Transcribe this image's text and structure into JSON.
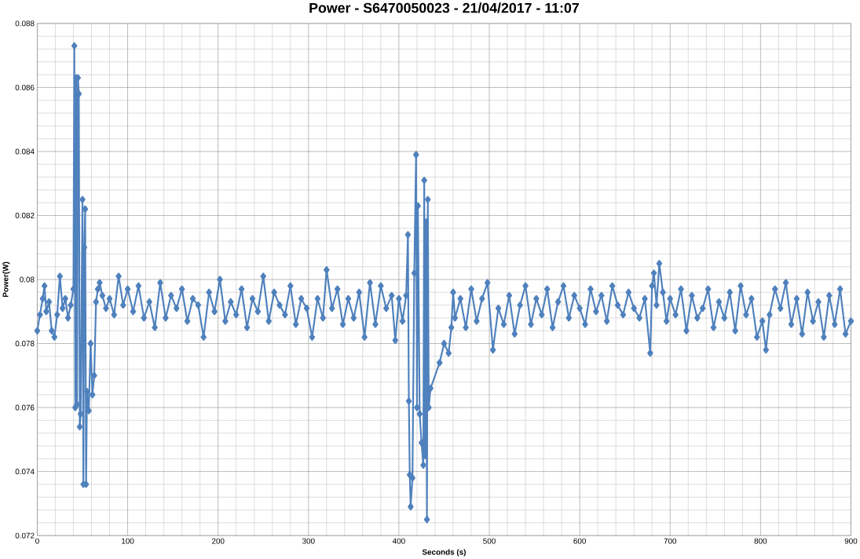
{
  "chart_data": {
    "type": "line",
    "title": "Power - S6470050023 - 21/04/2017 - 11:07",
    "xlabel": "Seconds (s)",
    "ylabel": "Power(W)",
    "xlim": [
      0,
      900
    ],
    "ylim": [
      0.072,
      0.088
    ],
    "xticks": [
      0,
      100,
      200,
      300,
      400,
      500,
      600,
      700,
      800,
      900
    ],
    "yticks": [
      0.072,
      0.074,
      0.076,
      0.078,
      0.08,
      0.082,
      0.084,
      0.086,
      0.088
    ],
    "grid": true,
    "marker": "diamond",
    "line_style": "solid",
    "series": [
      {
        "color": "#4f81bd",
        "x": [
          0,
          3,
          6,
          8,
          10,
          13,
          16,
          19,
          22,
          25,
          28,
          31,
          34,
          37,
          40,
          41,
          42,
          43,
          44,
          45,
          46,
          47,
          48,
          50,
          51,
          52,
          53,
          54,
          55,
          57,
          59,
          61,
          63,
          65,
          67,
          69,
          72,
          76,
          80,
          85,
          90,
          95,
          100,
          106,
          112,
          118,
          124,
          130,
          136,
          142,
          148,
          154,
          160,
          166,
          172,
          178,
          184,
          190,
          196,
          202,
          208,
          214,
          220,
          226,
          232,
          238,
          244,
          250,
          256,
          262,
          268,
          274,
          280,
          286,
          292,
          298,
          304,
          310,
          316,
          320,
          326,
          332,
          338,
          344,
          350,
          356,
          362,
          368,
          374,
          380,
          386,
          392,
          396,
          400,
          404,
          408,
          410,
          411,
          412,
          413,
          415,
          417,
          419,
          420,
          421,
          423,
          425,
          427,
          428,
          429,
          430,
          431,
          432,
          433,
          435,
          445,
          450,
          455,
          458,
          460,
          462,
          468,
          474,
          480,
          486,
          492,
          498,
          504,
          510,
          516,
          522,
          528,
          534,
          540,
          546,
          552,
          558,
          564,
          570,
          576,
          582,
          588,
          594,
          600,
          606,
          612,
          618,
          624,
          630,
          636,
          642,
          648,
          654,
          660,
          666,
          672,
          678,
          680,
          682,
          685,
          688,
          692,
          696,
          700,
          706,
          712,
          718,
          724,
          730,
          736,
          742,
          748,
          754,
          760,
          766,
          772,
          778,
          784,
          790,
          796,
          802,
          806,
          810,
          816,
          822,
          828,
          834,
          840,
          846,
          852,
          858,
          864,
          870,
          876,
          882,
          888,
          894,
          900
        ],
        "values": [
          0.0784,
          0.0789,
          0.0794,
          0.0798,
          0.079,
          0.0793,
          0.0784,
          0.0782,
          0.0789,
          0.0801,
          0.0791,
          0.0794,
          0.0788,
          0.0792,
          0.0797,
          0.0873,
          0.076,
          0.0863,
          0.0761,
          0.0863,
          0.0858,
          0.0754,
          0.0758,
          0.0825,
          0.0736,
          0.081,
          0.0822,
          0.0736,
          0.0765,
          0.0759,
          0.078,
          0.0764,
          0.077,
          0.0793,
          0.0797,
          0.0799,
          0.0795,
          0.0791,
          0.0794,
          0.0789,
          0.0801,
          0.0792,
          0.0797,
          0.079,
          0.0798,
          0.0788,
          0.0793,
          0.0785,
          0.0799,
          0.0788,
          0.0795,
          0.0791,
          0.0797,
          0.0787,
          0.0794,
          0.0792,
          0.0782,
          0.0796,
          0.079,
          0.08,
          0.0787,
          0.0793,
          0.0789,
          0.0797,
          0.0785,
          0.0794,
          0.079,
          0.0801,
          0.0787,
          0.0796,
          0.0792,
          0.0789,
          0.0798,
          0.0786,
          0.0794,
          0.0791,
          0.0782,
          0.0794,
          0.0788,
          0.0803,
          0.0791,
          0.0797,
          0.0786,
          0.0794,
          0.0788,
          0.0796,
          0.0782,
          0.0799,
          0.0786,
          0.0798,
          0.0791,
          0.0795,
          0.0781,
          0.0794,
          0.0787,
          0.0795,
          0.0814,
          0.0762,
          0.0739,
          0.0729,
          0.0738,
          0.0802,
          0.0839,
          0.076,
          0.0823,
          0.0758,
          0.0749,
          0.0742,
          0.0831,
          0.0745,
          0.0818,
          0.0725,
          0.0825,
          0.076,
          0.0766,
          0.0774,
          0.078,
          0.0777,
          0.0785,
          0.0796,
          0.0788,
          0.0794,
          0.0785,
          0.0797,
          0.0787,
          0.0794,
          0.0799,
          0.0778,
          0.0791,
          0.0786,
          0.0795,
          0.0783,
          0.0792,
          0.0798,
          0.0786,
          0.0794,
          0.0789,
          0.0797,
          0.0785,
          0.0793,
          0.0798,
          0.0788,
          0.0795,
          0.0791,
          0.0786,
          0.0797,
          0.079,
          0.0795,
          0.0787,
          0.0798,
          0.0792,
          0.0789,
          0.0796,
          0.0791,
          0.0788,
          0.0794,
          0.0777,
          0.0798,
          0.0802,
          0.0792,
          0.0805,
          0.0796,
          0.0787,
          0.0794,
          0.0789,
          0.0797,
          0.0784,
          0.0795,
          0.0788,
          0.0791,
          0.0797,
          0.0785,
          0.0793,
          0.0788,
          0.0796,
          0.0784,
          0.0798,
          0.0789,
          0.0794,
          0.0782,
          0.0787,
          0.0778,
          0.0789,
          0.0797,
          0.0791,
          0.0799,
          0.0786,
          0.0794,
          0.0783,
          0.0796,
          0.0787,
          0.0793,
          0.0782,
          0.0795,
          0.0786,
          0.0797,
          0.0783,
          0.0787
        ]
      }
    ]
  }
}
